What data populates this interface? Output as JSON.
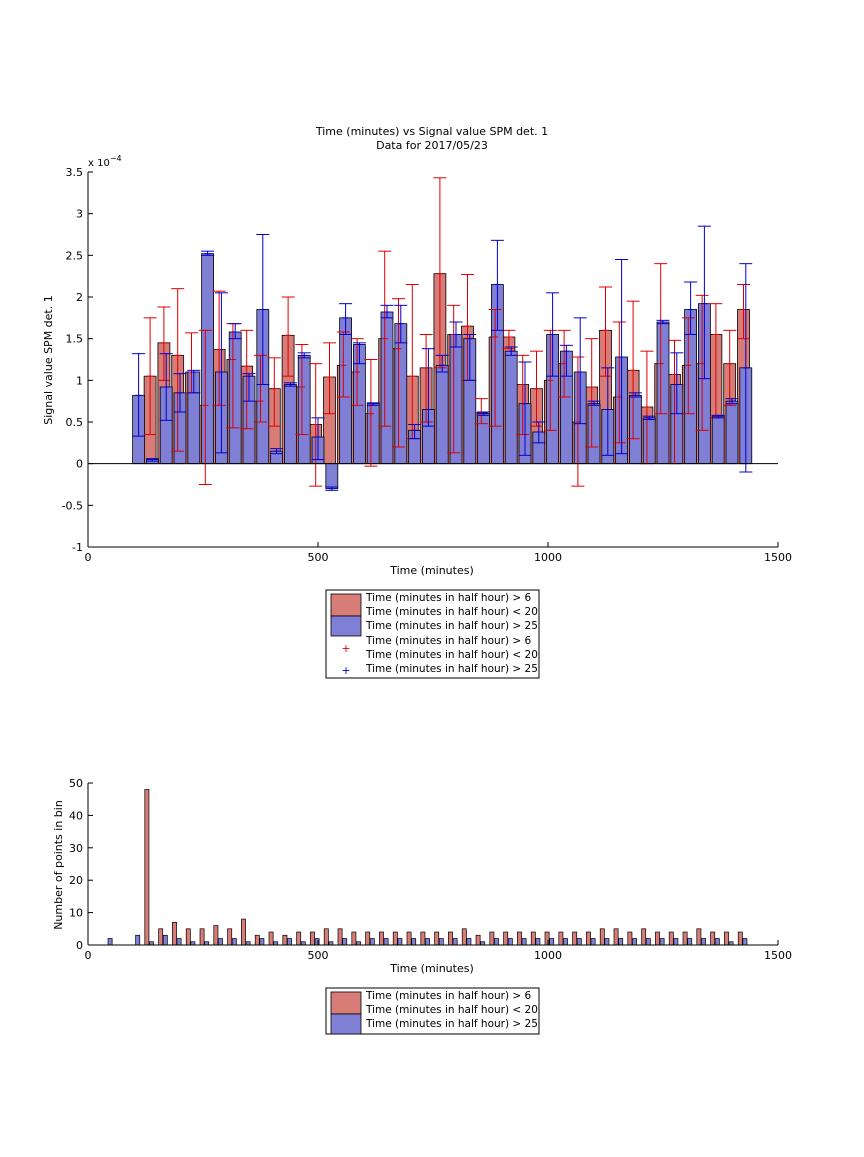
{
  "chart_data": [
    {
      "type": "bar",
      "title": "Time (minutes) vs Signal value SPM det. 1",
      "subtitle": "Data for 2017/05/23",
      "xlabel": "Time (minutes)",
      "ylabel": "Signal value SPM det. 1",
      "y_multiplier": "x 10",
      "y_multiplier_exp": "−4",
      "xlim": [
        0,
        1500
      ],
      "ylim": [
        -1,
        3.5
      ],
      "xticks": [
        0,
        500,
        1000,
        1500
      ],
      "yticks": [
        -1,
        -0.5,
        0,
        0.5,
        1,
        1.5,
        2,
        2.5,
        3,
        3.5
      ],
      "grid": false,
      "legend_position": "below",
      "legend": [
        "Time (minutes in half hour) > 6\nTime (minutes in half hour) < 20",
        "Time (minutes in half hour) > 25",
        "Time (minutes in half hour) > 6\nTime (minutes in half hour) < 20",
        "Time (minutes in half hour) > 25"
      ],
      "colors": {
        "red_fill": "#d87c78",
        "blue_fill": "#7f7fd6",
        "red_err": "#dd0000",
        "blue_err": "#0000cc"
      },
      "series": [
        {
          "color": "red",
          "x": [
            135,
            165,
            195,
            225,
            255,
            285,
            315,
            345,
            375,
            405,
            435,
            465,
            495,
            525,
            555,
            585,
            615,
            645,
            675,
            705,
            735,
            765,
            795,
            825,
            855,
            885,
            915,
            945,
            975,
            1005,
            1035,
            1065,
            1095,
            1125,
            1155,
            1185,
            1215,
            1245,
            1275,
            1305,
            1335,
            1365,
            1395,
            1425
          ],
          "values": [
            1.05,
            1.45,
            1.3,
            1.1,
            0.7,
            1.37,
            1.25,
            1.17,
            0.75,
            0.9,
            1.54,
            0.92,
            0.47,
            1.04,
            1.18,
            1.1,
            0.6,
            1.5,
            1.38,
            1.05,
            1.15,
            2.28,
            1.55,
            1.65,
            0.61,
            1.52,
            1.52,
            0.95,
            0.9,
            1.0,
            1.2,
            0.5,
            0.92,
            1.6,
            0.8,
            1.12,
            0.68,
            1.2,
            1.07,
            1.18,
            1.2,
            1.55,
            1.2,
            1.85
          ],
          "err_low": [
            0.35,
            1.0,
            0.15,
            0.85,
            -0.25,
            0.7,
            0.43,
            0.42,
            0.5,
            0.45,
            1.05,
            0.35,
            -0.27,
            0.6,
            0.8,
            0.7,
            -0.03,
            0.45,
            0.2,
            0.3,
            0.5,
            1.15,
            0.13,
            1.0,
            0.48,
            0.45,
            1.38,
            0.35,
            0.45,
            0.4,
            0.8,
            -0.27,
            0.2,
            1.05,
            0.25,
            0.3,
            0.0,
            0.6,
            0.0,
            0.6,
            0.4,
            0.55,
            0.7,
            1.5
          ],
          "err_high": [
            1.75,
            1.88,
            2.1,
            1.57,
            1.6,
            2.07,
            1.68,
            1.6,
            1.3,
            1.27,
            2.0,
            1.43,
            1.2,
            1.45,
            1.58,
            1.5,
            1.25,
            2.55,
            1.98,
            2.15,
            1.55,
            3.43,
            1.9,
            2.27,
            0.78,
            1.85,
            1.6,
            1.3,
            1.35,
            1.6,
            1.6,
            1.28,
            1.5,
            2.12,
            1.7,
            1.95,
            1.35,
            2.4,
            1.48,
            1.75,
            2.02,
            1.92,
            1.6,
            2.15
          ]
        },
        {
          "color": "blue",
          "x": [
            110,
            140,
            170,
            200,
            230,
            260,
            290,
            320,
            350,
            380,
            410,
            440,
            470,
            500,
            530,
            560,
            590,
            620,
            650,
            680,
            710,
            740,
            770,
            800,
            830,
            860,
            890,
            920,
            950,
            980,
            1010,
            1040,
            1070,
            1100,
            1130,
            1160,
            1190,
            1220,
            1250,
            1280,
            1310,
            1340,
            1370,
            1400,
            1430
          ],
          "values": [
            0.82,
            0.05,
            0.92,
            0.85,
            1.1,
            2.52,
            1.1,
            1.58,
            1.05,
            1.85,
            0.15,
            0.95,
            1.3,
            0.32,
            -0.3,
            1.75,
            1.43,
            0.72,
            1.82,
            1.68,
            0.4,
            0.65,
            1.18,
            1.55,
            1.5,
            0.6,
            2.15,
            1.35,
            0.72,
            0.38,
            1.55,
            1.35,
            1.1,
            0.72,
            0.65,
            1.28,
            0.82,
            0.55,
            1.7,
            0.95,
            1.85,
            1.92,
            0.57,
            0.75,
            1.15
          ],
          "err_low": [
            0.33,
            0.03,
            0.52,
            0.62,
            0.85,
            2.5,
            0.13,
            1.5,
            0.75,
            0.95,
            0.12,
            0.93,
            1.27,
            0.05,
            -0.32,
            1.55,
            1.2,
            0.7,
            1.75,
            1.45,
            0.3,
            0.45,
            1.1,
            1.4,
            1.0,
            0.58,
            1.6,
            1.3,
            0.1,
            0.25,
            1.05,
            1.05,
            0.48,
            0.7,
            0.1,
            0.12,
            0.8,
            0.53,
            1.68,
            0.6,
            1.55,
            1.02,
            0.55,
            0.72,
            -0.1
          ],
          "err_high": [
            1.32,
            0.06,
            1.32,
            1.08,
            1.12,
            2.55,
            2.05,
            1.68,
            1.08,
            2.75,
            0.18,
            0.97,
            1.33,
            0.55,
            -0.28,
            1.92,
            1.45,
            0.73,
            1.9,
            1.9,
            0.47,
            1.38,
            1.3,
            1.7,
            1.55,
            0.62,
            2.68,
            1.4,
            1.22,
            0.5,
            2.05,
            1.42,
            1.75,
            0.75,
            1.15,
            2.45,
            0.85,
            0.57,
            1.72,
            1.33,
            2.18,
            2.85,
            0.58,
            0.78,
            2.4
          ]
        }
      ]
    },
    {
      "type": "bar",
      "xlabel": "Time (minutes)",
      "ylabel": "Number of points in bin",
      "xlim": [
        0,
        1500
      ],
      "ylim": [
        0,
        50
      ],
      "xticks": [
        0,
        500,
        1000,
        1500
      ],
      "yticks": [
        0,
        10,
        20,
        30,
        40,
        50
      ],
      "grid": false,
      "legend_position": "below",
      "legend": [
        "Time (minutes in half hour) > 6\nTime (minutes in half hour) < 20",
        "Time (minutes in half hour) > 25"
      ],
      "series": [
        {
          "color": "red",
          "x": [
            128,
            158,
            188,
            218,
            248,
            278,
            308,
            338,
            368,
            398,
            428,
            458,
            488,
            518,
            548,
            578,
            608,
            638,
            668,
            698,
            728,
            758,
            788,
            818,
            848,
            878,
            908,
            938,
            968,
            998,
            1028,
            1058,
            1088,
            1118,
            1148,
            1178,
            1208,
            1238,
            1268,
            1298,
            1328,
            1358,
            1388,
            1418
          ],
          "values": [
            48,
            5,
            7,
            5,
            5,
            6,
            5,
            8,
            3,
            4,
            3,
            4,
            4,
            5,
            5,
            4,
            4,
            4,
            4,
            4,
            4,
            4,
            4,
            5,
            3,
            4,
            4,
            4,
            4,
            4,
            4,
            4,
            4,
            5,
            5,
            4,
            5,
            4,
            4,
            4,
            5,
            4,
            4,
            4
          ]
        },
        {
          "color": "blue",
          "x": [
            48,
            108,
            138,
            168,
            198,
            228,
            258,
            288,
            318,
            348,
            378,
            408,
            438,
            468,
            498,
            528,
            558,
            588,
            618,
            648,
            678,
            708,
            738,
            768,
            798,
            828,
            858,
            888,
            918,
            948,
            978,
            1008,
            1038,
            1068,
            1098,
            1128,
            1158,
            1188,
            1218,
            1248,
            1278,
            1308,
            1338,
            1368,
            1398,
            1428
          ],
          "values": [
            2,
            3,
            1,
            3,
            2,
            1,
            1,
            2,
            2,
            1,
            2,
            1,
            2,
            1,
            2,
            1,
            2,
            1,
            2,
            2,
            2,
            2,
            2,
            2,
            2,
            2,
            1,
            2,
            2,
            2,
            2,
            2,
            2,
            2,
            2,
            2,
            2,
            2,
            2,
            2,
            2,
            2,
            2,
            2,
            1,
            2
          ]
        }
      ]
    }
  ]
}
